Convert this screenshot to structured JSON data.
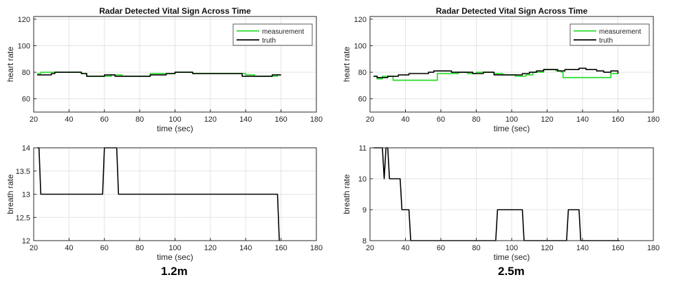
{
  "figure": {
    "captions": [
      "1.2m",
      "2.5m"
    ]
  },
  "colors": {
    "measurement": "#33dd33",
    "truth": "#000000",
    "grid": "#e3e3e3",
    "axis": "#262626"
  },
  "chart_data": [
    {
      "type": "line",
      "title": "Radar Detected Vital Sign Across Time",
      "xlabel": "time (sec)",
      "ylabel": "heart rate",
      "xlim": [
        20,
        180
      ],
      "ylim": [
        50,
        122
      ],
      "xticks": [
        20,
        40,
        60,
        80,
        100,
        120,
        140,
        160,
        180
      ],
      "yticks": [
        60,
        80,
        100,
        120
      ],
      "grid": true,
      "legend": "top-right",
      "series": [
        {
          "name": "measurement",
          "color": "#33dd33",
          "step": true,
          "x": [
            22,
            24,
            30,
            44,
            47,
            50,
            56,
            60,
            64,
            70,
            86,
            95,
            100,
            110,
            140,
            145,
            158,
            160
          ],
          "y": [
            79,
            80,
            80,
            80,
            79,
            77,
            77,
            77,
            78,
            77,
            79,
            79,
            80,
            79,
            78,
            77,
            78,
            78
          ]
        },
        {
          "name": "truth",
          "color": "#000000",
          "step": true,
          "x": [
            22,
            30,
            32,
            44,
            47,
            50,
            56,
            60,
            64,
            66,
            70,
            86,
            95,
            100,
            110,
            138,
            150,
            155,
            160
          ],
          "y": [
            78,
            79,
            80,
            80,
            79,
            77,
            77,
            78,
            78,
            77,
            77,
            78,
            79,
            80,
            79,
            77,
            77,
            78,
            78
          ]
        }
      ]
    },
    {
      "type": "line",
      "title": "Radar Detected Vital Sign Across Time",
      "xlabel": "time (sec)",
      "ylabel": "heart rate",
      "xlim": [
        20,
        180
      ],
      "ylim": [
        50,
        122
      ],
      "xticks": [
        20,
        40,
        60,
        80,
        100,
        120,
        140,
        160,
        180
      ],
      "yticks": [
        60,
        80,
        100,
        120
      ],
      "grid": true,
      "legend": "top-right",
      "series": [
        {
          "name": "measurement",
          "color": "#33dd33",
          "step": true,
          "x": [
            22,
            24,
            27,
            30,
            33,
            56,
            58,
            70,
            75,
            80,
            90,
            95,
            102,
            108,
            112,
            118,
            125,
            128,
            129,
            153,
            156,
            160
          ],
          "y": [
            77,
            75,
            77,
            77,
            74,
            74,
            79,
            80,
            79,
            80,
            79,
            78,
            77,
            78,
            80,
            82,
            81,
            80,
            76,
            76,
            79,
            80
          ]
        },
        {
          "name": "truth",
          "color": "#000000",
          "step": true,
          "x": [
            22,
            24,
            30,
            36,
            42,
            47,
            53,
            56,
            62,
            66,
            72,
            78,
            84,
            90,
            96,
            102,
            106,
            110,
            114,
            118,
            122,
            126,
            130,
            134,
            138,
            142,
            148,
            152,
            156,
            160
          ],
          "y": [
            77,
            76,
            77,
            78,
            79,
            79,
            80,
            81,
            81,
            80,
            80,
            79,
            80,
            78,
            78,
            78,
            79,
            80,
            81,
            82,
            82,
            81,
            82,
            82,
            83,
            82,
            81,
            80,
            81,
            79
          ]
        }
      ]
    },
    {
      "type": "line",
      "title": "",
      "xlabel": "time (sec)",
      "ylabel": "breath rate",
      "xlim": [
        20,
        180
      ],
      "ylim": [
        12,
        14
      ],
      "xticks": [
        20,
        40,
        60,
        80,
        100,
        120,
        140,
        160,
        180
      ],
      "yticks": [
        12,
        12.5,
        13,
        13.5,
        14
      ],
      "ytick_labels": [
        "12",
        "12.5",
        "13",
        "13.5",
        "14"
      ],
      "grid": true,
      "series": [
        {
          "color": "#000000",
          "step": false,
          "x": [
            22,
            23,
            24,
            58,
            59,
            60,
            66,
            67,
            68,
            157,
            158,
            159
          ],
          "y": [
            14,
            14,
            13,
            13,
            13,
            14,
            14,
            14,
            13,
            13,
            13,
            12
          ]
        }
      ]
    },
    {
      "type": "line",
      "title": "",
      "xlabel": "time (sec)",
      "ylabel": "breath rate",
      "xlim": [
        20,
        180
      ],
      "ylim": [
        8,
        11
      ],
      "xticks": [
        20,
        40,
        60,
        80,
        100,
        120,
        140,
        160,
        180
      ],
      "yticks": [
        8,
        9,
        10,
        11
      ],
      "grid": true,
      "series": [
        {
          "color": "#000000",
          "step": false,
          "x": [
            22,
            27,
            28,
            29,
            30,
            31,
            32,
            37,
            38,
            39,
            42,
            43,
            44,
            91,
            92,
            93,
            106,
            107,
            108,
            131,
            132,
            133,
            138,
            139,
            140,
            161
          ],
          "y": [
            11,
            11,
            10,
            11,
            11,
            10,
            10,
            10,
            9,
            9,
            9,
            8,
            8,
            8,
            9,
            9,
            9,
            8,
            8,
            8,
            9,
            9,
            9,
            8,
            8,
            8
          ]
        }
      ]
    }
  ]
}
